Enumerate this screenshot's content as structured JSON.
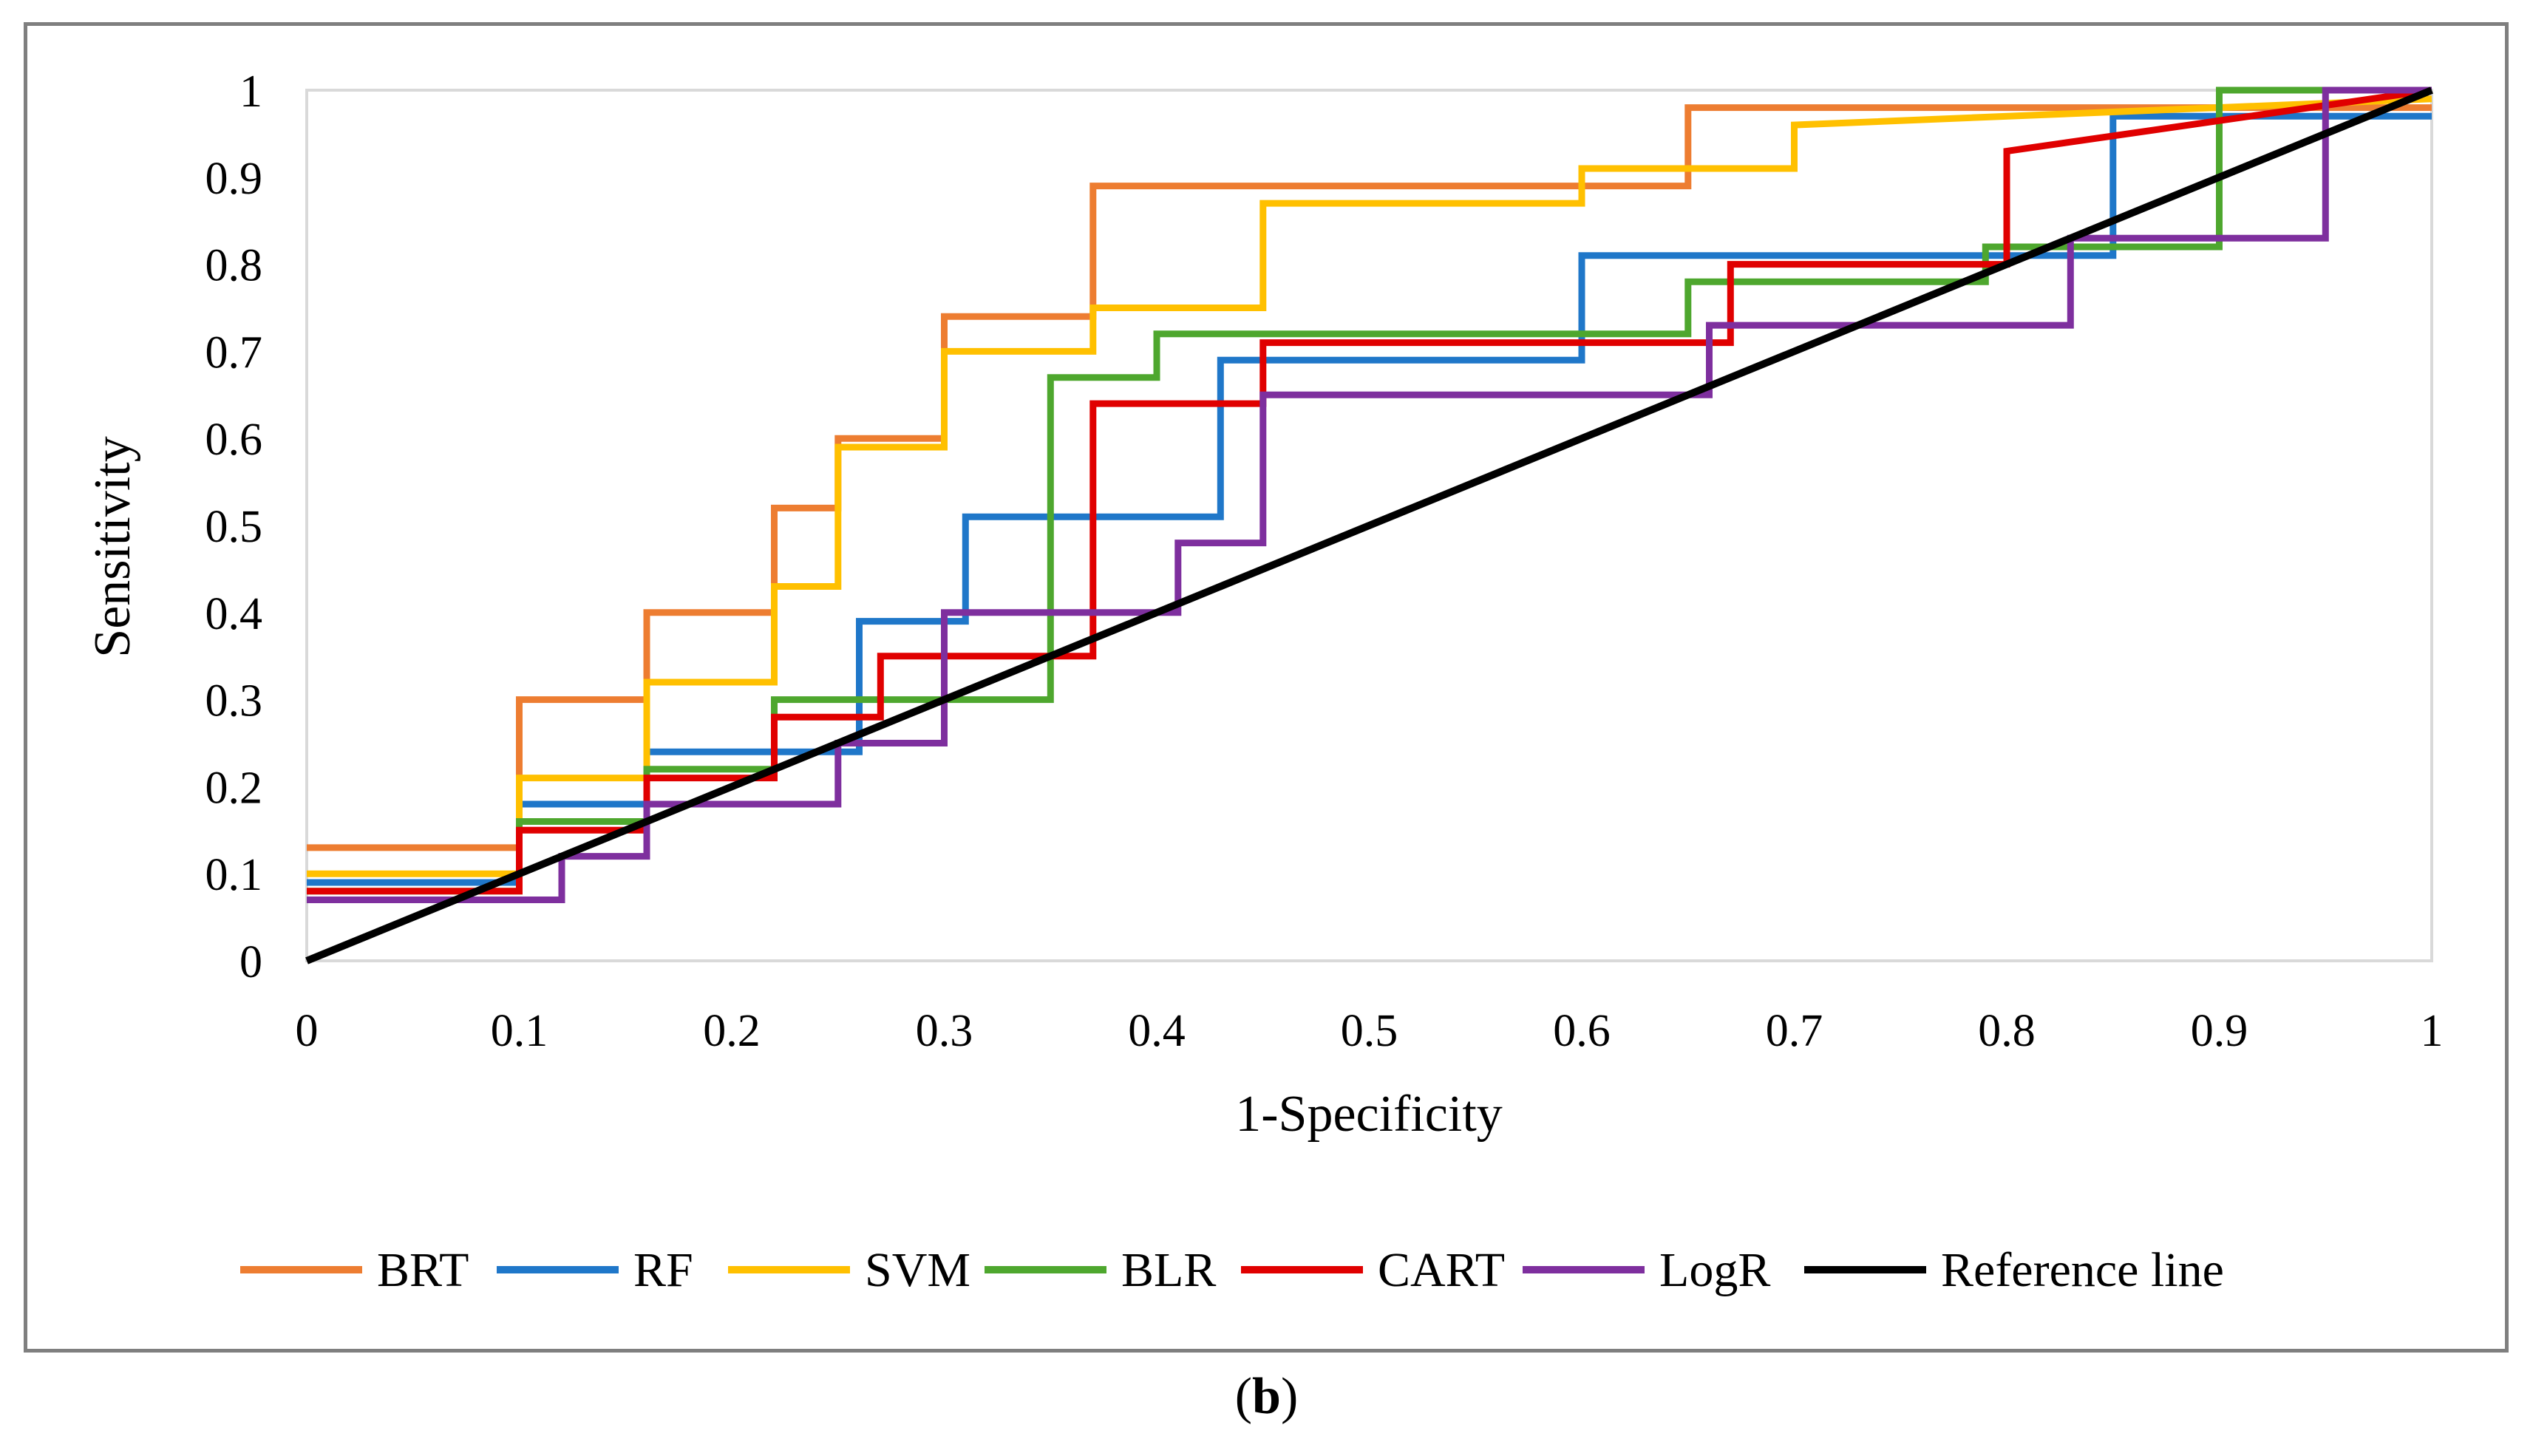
{
  "caption": {
    "open": "(",
    "letter": "b",
    "close": ")"
  },
  "chart_data": {
    "type": "line",
    "title": "",
    "xlabel": "1-Specificity",
    "ylabel": "Sensitivity",
    "xlim": [
      0,
      1
    ],
    "ylim": [
      0,
      1
    ],
    "x_ticks": [
      "0",
      "0.1",
      "0.2",
      "0.3",
      "0.4",
      "0.5",
      "0.6",
      "0.7",
      "0.8",
      "0.9",
      "1"
    ],
    "y_ticks": [
      "0",
      "0.1",
      "0.2",
      "0.3",
      "0.4",
      "0.5",
      "0.6",
      "0.7",
      "0.8",
      "0.9",
      "1"
    ],
    "grid": false,
    "legend_position": "bottom",
    "series": [
      {
        "name": "BRT",
        "color": "#ED7D31",
        "points": [
          [
            0,
            0.13
          ],
          [
            0.1,
            0.13
          ],
          [
            0.1,
            0.3
          ],
          [
            0.16,
            0.3
          ],
          [
            0.16,
            0.4
          ],
          [
            0.22,
            0.4
          ],
          [
            0.22,
            0.52
          ],
          [
            0.25,
            0.52
          ],
          [
            0.25,
            0.6
          ],
          [
            0.3,
            0.6
          ],
          [
            0.3,
            0.74
          ],
          [
            0.37,
            0.74
          ],
          [
            0.37,
            0.89
          ],
          [
            0.65,
            0.89
          ],
          [
            0.65,
            0.98
          ],
          [
            1.0,
            0.98
          ]
        ]
      },
      {
        "name": "RF",
        "color": "#1F77C9",
        "points": [
          [
            0,
            0.09
          ],
          [
            0.1,
            0.09
          ],
          [
            0.1,
            0.18
          ],
          [
            0.16,
            0.18
          ],
          [
            0.16,
            0.24
          ],
          [
            0.26,
            0.24
          ],
          [
            0.26,
            0.39
          ],
          [
            0.31,
            0.39
          ],
          [
            0.31,
            0.51
          ],
          [
            0.43,
            0.51
          ],
          [
            0.43,
            0.69
          ],
          [
            0.6,
            0.69
          ],
          [
            0.6,
            0.81
          ],
          [
            0.85,
            0.81
          ],
          [
            0.85,
            0.97
          ],
          [
            1.0,
            0.97
          ]
        ]
      },
      {
        "name": "SVM",
        "color": "#FFC000",
        "points": [
          [
            0,
            0.1
          ],
          [
            0.1,
            0.1
          ],
          [
            0.1,
            0.21
          ],
          [
            0.16,
            0.21
          ],
          [
            0.16,
            0.32
          ],
          [
            0.22,
            0.32
          ],
          [
            0.22,
            0.43
          ],
          [
            0.25,
            0.43
          ],
          [
            0.25,
            0.59
          ],
          [
            0.3,
            0.59
          ],
          [
            0.3,
            0.7
          ],
          [
            0.37,
            0.7
          ],
          [
            0.37,
            0.75
          ],
          [
            0.45,
            0.75
          ],
          [
            0.45,
            0.87
          ],
          [
            0.6,
            0.87
          ],
          [
            0.6,
            0.91
          ],
          [
            0.7,
            0.91
          ],
          [
            0.7,
            0.96
          ],
          [
            1.0,
            0.99
          ]
        ]
      },
      {
        "name": "BLR",
        "color": "#4EA72E",
        "points": [
          [
            0,
            0.08
          ],
          [
            0.1,
            0.08
          ],
          [
            0.1,
            0.16
          ],
          [
            0.16,
            0.16
          ],
          [
            0.16,
            0.22
          ],
          [
            0.22,
            0.22
          ],
          [
            0.22,
            0.3
          ],
          [
            0.35,
            0.3
          ],
          [
            0.35,
            0.67
          ],
          [
            0.4,
            0.67
          ],
          [
            0.4,
            0.72
          ],
          [
            0.65,
            0.72
          ],
          [
            0.65,
            0.78
          ],
          [
            0.79,
            0.78
          ],
          [
            0.79,
            0.82
          ],
          [
            0.9,
            0.82
          ],
          [
            0.9,
            1.0
          ],
          [
            1.0,
            1.0
          ]
        ]
      },
      {
        "name": "CART",
        "color": "#E00000",
        "points": [
          [
            0,
            0.08
          ],
          [
            0.1,
            0.08
          ],
          [
            0.1,
            0.15
          ],
          [
            0.16,
            0.15
          ],
          [
            0.16,
            0.21
          ],
          [
            0.22,
            0.21
          ],
          [
            0.22,
            0.28
          ],
          [
            0.27,
            0.28
          ],
          [
            0.27,
            0.35
          ],
          [
            0.37,
            0.35
          ],
          [
            0.37,
            0.64
          ],
          [
            0.45,
            0.64
          ],
          [
            0.45,
            0.71
          ],
          [
            0.67,
            0.71
          ],
          [
            0.67,
            0.8
          ],
          [
            0.8,
            0.8
          ],
          [
            0.8,
            0.93
          ],
          [
            1.0,
            1.0
          ]
        ]
      },
      {
        "name": "LogR",
        "color": "#7E2F9E",
        "points": [
          [
            0,
            0.07
          ],
          [
            0.12,
            0.07
          ],
          [
            0.12,
            0.12
          ],
          [
            0.16,
            0.12
          ],
          [
            0.16,
            0.18
          ],
          [
            0.25,
            0.18
          ],
          [
            0.25,
            0.25
          ],
          [
            0.3,
            0.25
          ],
          [
            0.3,
            0.4
          ],
          [
            0.41,
            0.4
          ],
          [
            0.41,
            0.48
          ],
          [
            0.45,
            0.48
          ],
          [
            0.45,
            0.65
          ],
          [
            0.66,
            0.65
          ],
          [
            0.66,
            0.73
          ],
          [
            0.83,
            0.73
          ],
          [
            0.83,
            0.83
          ],
          [
            0.95,
            0.83
          ],
          [
            0.95,
            1.0
          ],
          [
            1.0,
            1.0
          ]
        ]
      },
      {
        "name": "Reference line",
        "color": "#000000",
        "points": [
          [
            0,
            0
          ],
          [
            1.0,
            1.0
          ]
        ]
      }
    ]
  }
}
